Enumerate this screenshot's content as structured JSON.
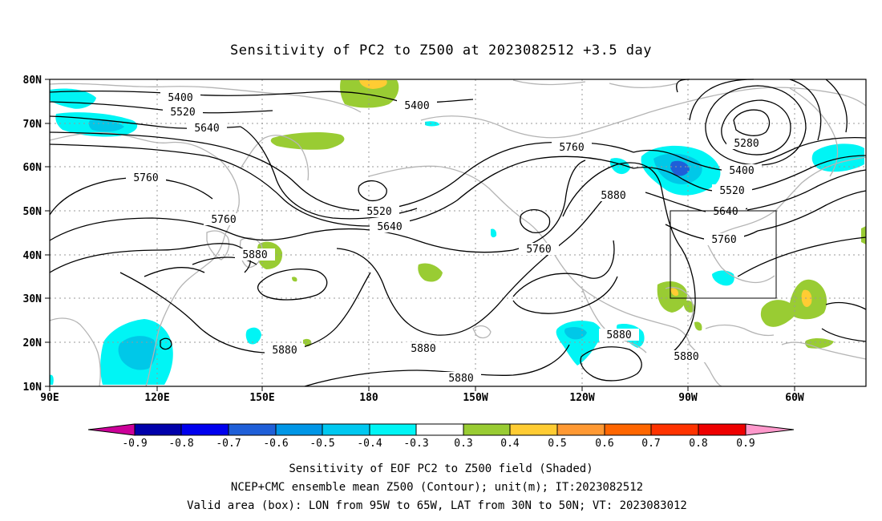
{
  "map": {
    "title": "Sensitivity of PC2 to Z500 at 2023082512 +3.5 day",
    "lat_labels": [
      "80N",
      "70N",
      "60N",
      "50N",
      "40N",
      "30N",
      "20N",
      "10N"
    ],
    "lon_labels": [
      "90E",
      "120E",
      "150E",
      "180",
      "150W",
      "120W",
      "90W",
      "60W"
    ],
    "contour_labels": [
      "5400",
      "5520",
      "5640",
      "5400",
      "5760",
      "5760",
      "5520",
      "5640",
      "5760",
      "5880",
      "5760",
      "5280",
      "5400",
      "5520",
      "5640",
      "5760",
      "5880",
      "5880",
      "5880",
      "5880",
      "5880"
    ],
    "shade_colors": {
      "strong_negative": "#1f5fd8",
      "negative": "#00c8e8",
      "weak_negative": "#00f5f5",
      "positive": "#99cc33",
      "moderate_positive": "#ffcc33",
      "strong_positive": "#ff9933"
    },
    "contour_color": "#000000",
    "coast_color": "#b4b4b4",
    "grid_lines": "dotted",
    "valid_box": {
      "lon_from": "95W",
      "lon_to": "65W",
      "lat_from": "30N",
      "lat_to": "50N"
    }
  },
  "colorbar": {
    "labels": [
      "-0.9",
      "-0.8",
      "-0.7",
      "-0.6",
      "-0.5",
      "-0.4",
      "-0.3",
      "0.3",
      "0.4",
      "0.5",
      "0.6",
      "0.7",
      "0.8",
      "0.9"
    ],
    "low_tip_color": "#cc0099",
    "high_tip_color": "#ff99cc",
    "colors": [
      "#0000aa",
      "#0000ee",
      "#1f5fd8",
      "#0096e6",
      "#00c8f0",
      "#00f5f5",
      "#ffffff",
      "#99cc33",
      "#ffcc33",
      "#ff9933",
      "#ff6600",
      "#ff3300",
      "#ee0000"
    ]
  },
  "footer": {
    "line1": "Sensitivity of EOF PC2 to Z500 field (Shaded)",
    "line2": "NCEP+CMC ensemble mean Z500 (Contour); unit(m); IT:2023082512",
    "line3": "Valid area (box): LON from 95W to 65W, LAT from 30N to 50N; VT: 2023083012"
  }
}
